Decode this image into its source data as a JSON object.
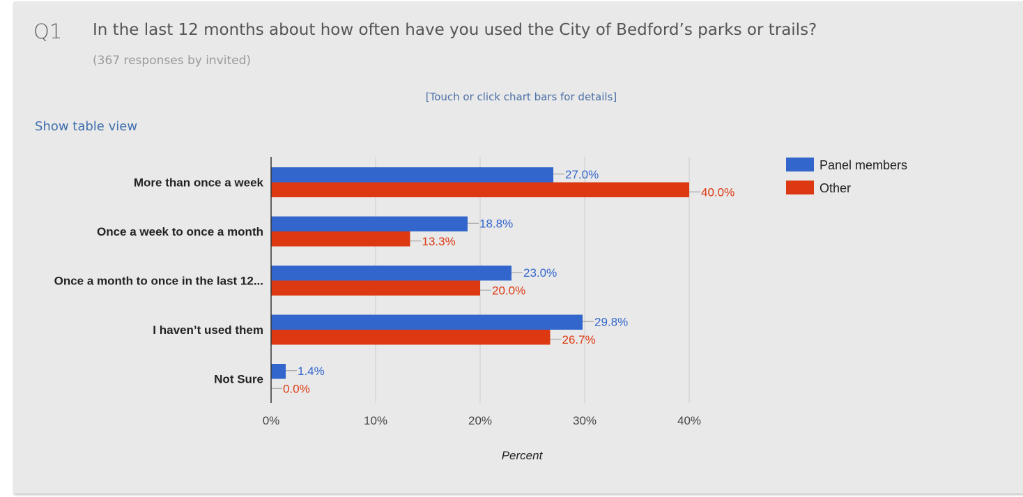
{
  "question": {
    "number": "Q1",
    "text": "In the last 12 months about how often have you used the City of Bedford’s parks or trails?",
    "responses": "(367 responses by invited)"
  },
  "hint": "[Touch or click chart bars for details]",
  "table_view_link": "Show table view",
  "colors": {
    "panel": "#3366cc",
    "other": "#dc3912",
    "grid": "#cccccc",
    "axis": "#333333"
  },
  "chart_data": {
    "type": "bar",
    "orientation": "horizontal",
    "categories": [
      "More than once a week",
      "Once a week to once a month",
      "Once a month to once in the last 12...",
      "I haven’t used them",
      "Not Sure"
    ],
    "series": [
      {
        "name": "Panel members",
        "color": "#3366cc",
        "values": [
          27.0,
          18.8,
          23.0,
          29.8,
          1.4
        ],
        "labels": [
          "27.0%",
          "18.8%",
          "23.0%",
          "29.8%",
          "1.4%"
        ]
      },
      {
        "name": "Other",
        "color": "#dc3912",
        "values": [
          40.0,
          13.3,
          20.0,
          26.7,
          0.0
        ],
        "labels": [
          "40.0%",
          "13.3%",
          "20.0%",
          "26.7%",
          "0.0%"
        ]
      }
    ],
    "xlabel": "Percent",
    "xlim": [
      0,
      40
    ],
    "xticks": [
      0,
      10,
      20,
      30,
      40
    ],
    "xtick_labels": [
      "0%",
      "10%",
      "20%",
      "30%",
      "40%"
    ],
    "grid": true,
    "legend": "right"
  }
}
